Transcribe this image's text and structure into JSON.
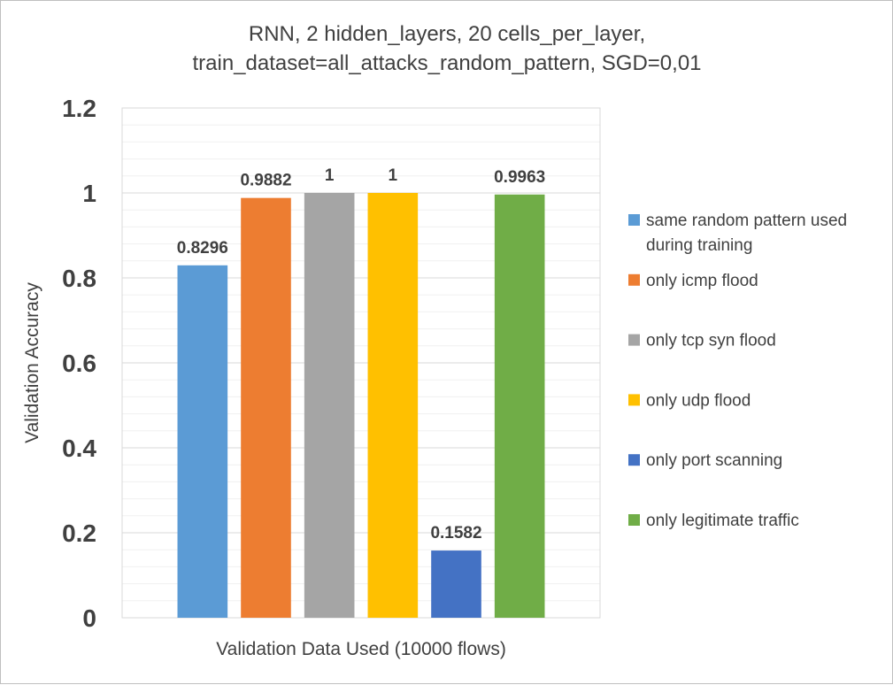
{
  "chart_data": {
    "type": "bar",
    "title_lines": [
      "RNN, 2 hidden_layers, 20 cells_per_layer,",
      "train_dataset=all_attacks_random_pattern, SGD=0,01"
    ],
    "xlabel": "Validation Data Used (10000 flows)",
    "ylabel": "Validation Accuracy",
    "ylim": [
      0,
      1.2
    ],
    "yticks": [
      0,
      0.2,
      0.4,
      0.6,
      0.8,
      1,
      1.2
    ],
    "ytick_labels": [
      "0",
      "0.2",
      "0.4",
      "0.6",
      "0.8",
      "1",
      "1.2"
    ],
    "grid": true,
    "legend_position": "right",
    "series": [
      {
        "name": "same random pattern used during training",
        "legend_lines": [
          "same random pattern used",
          "during training"
        ],
        "value": 0.8296,
        "label": "0.8296",
        "color": "#5b9bd5"
      },
      {
        "name": "only icmp flood",
        "legend_lines": [
          "only icmp flood"
        ],
        "value": 0.9882,
        "label": "0.9882",
        "color": "#ed7d31"
      },
      {
        "name": "only tcp syn flood",
        "legend_lines": [
          "only tcp syn flood"
        ],
        "value": 1,
        "label": "1",
        "color": "#a5a5a5"
      },
      {
        "name": "only udp flood",
        "legend_lines": [
          "only udp flood"
        ],
        "value": 1,
        "label": "1",
        "color": "#ffc000"
      },
      {
        "name": "only port scanning",
        "legend_lines": [
          "only port scanning"
        ],
        "value": 0.1582,
        "label": "0.1582",
        "color": "#4472c4"
      },
      {
        "name": "only legitimate traffic",
        "legend_lines": [
          "only legitimate traffic"
        ],
        "value": 0.9963,
        "label": "0.9963",
        "color": "#70ad47"
      }
    ]
  }
}
